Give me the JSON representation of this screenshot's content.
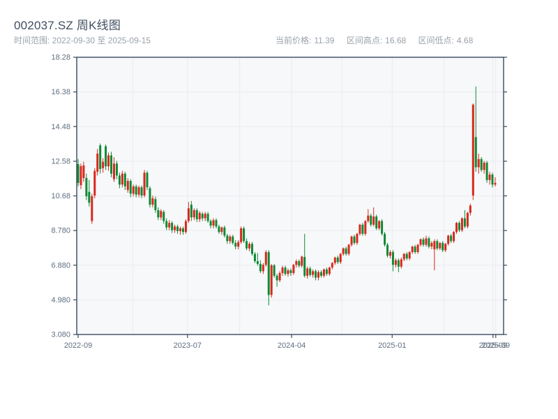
{
  "header": {
    "title": "002037.SZ 周K线图",
    "date_range": "时间范围: 2022-09-30 至 2025-09-15",
    "stats": [
      {
        "label": "当前价格:",
        "value": "11.39"
      },
      {
        "label": "区间高点:",
        "value": "16.68"
      },
      {
        "label": "区间低点:",
        "value": "4.68"
      }
    ]
  },
  "chart_data": {
    "type": "candlestick",
    "title": "002037.SZ 周K线图",
    "interval": "weekly",
    "ylim": [
      3.08,
      18.28
    ],
    "grid": true,
    "up_color_meaning": "red = up week, green = down week",
    "y_ticks": [
      {
        "value": 18.28,
        "label": "18.28"
      },
      {
        "value": 16.38,
        "label": "16.38"
      },
      {
        "value": 14.48,
        "label": "14.48"
      },
      {
        "value": 12.58,
        "label": "12.58"
      },
      {
        "value": 10.68,
        "label": "10.68"
      },
      {
        "value": 8.78,
        "label": "8.780"
      },
      {
        "value": 6.88,
        "label": "6.880"
      },
      {
        "value": 4.98,
        "label": "4.980"
      },
      {
        "value": 3.08,
        "label": "3.080"
      }
    ],
    "x_ticks": [
      {
        "pos": 0,
        "label": "2022-09"
      },
      {
        "pos": 39.6,
        "label": "2023-07"
      },
      {
        "pos": 77.3,
        "label": "2024-04"
      },
      {
        "pos": 113.7,
        "label": "2025-01"
      },
      {
        "pos": 150.2,
        "label": "2025-09"
      },
      {
        "pos": 151.2,
        "label": "2025-09"
      }
    ],
    "x_grid_minor": [
      19.8,
      58.5,
      95.5,
      132.5
    ],
    "colors": {
      "up": "#d8281c",
      "down": "#0e8a34",
      "plot_bg": "#f7f8fa",
      "grid": "#e9ebee",
      "spine": "#3a4a5c",
      "tick_label": "#5f6e80"
    },
    "candles": [
      [
        12.42,
        12.7,
        11.2,
        11.39
      ],
      [
        11.27,
        12.45,
        11.05,
        12.31
      ],
      [
        11.66,
        12.55,
        11.45,
        12.35
      ],
      [
        11.66,
        11.9,
        10.45,
        10.66
      ],
      [
        10.9,
        11.55,
        10.1,
        10.3
      ],
      [
        9.3,
        10.8,
        9.15,
        10.66
      ],
      [
        10.7,
        12.2,
        10.55,
        12.05
      ],
      [
        12.0,
        13.25,
        11.8,
        13.0
      ],
      [
        13.45,
        13.55,
        11.9,
        12.15
      ],
      [
        12.2,
        12.75,
        11.95,
        12.55
      ],
      [
        13.4,
        13.5,
        12.1,
        12.3
      ],
      [
        12.3,
        13.05,
        12.05,
        12.9
      ],
      [
        12.9,
        13.1,
        11.7,
        11.9
      ],
      [
        11.6,
        12.8,
        11.45,
        12.45
      ],
      [
        12.45,
        12.6,
        11.6,
        11.8
      ],
      [
        11.8,
        11.95,
        11.1,
        11.3
      ],
      [
        11.3,
        12.05,
        11.15,
        11.9
      ],
      [
        11.9,
        12.0,
        11.0,
        11.2
      ],
      [
        11.0,
        11.65,
        10.85,
        11.5
      ],
      [
        11.5,
        11.6,
        10.6,
        10.8
      ],
      [
        10.8,
        11.3,
        10.65,
        11.2
      ],
      [
        11.2,
        11.3,
        10.6,
        10.75
      ],
      [
        10.75,
        11.25,
        10.6,
        11.15
      ],
      [
        11.15,
        11.25,
        10.55,
        10.7
      ],
      [
        10.7,
        12.1,
        10.6,
        11.95
      ],
      [
        11.95,
        12.05,
        11.0,
        11.15
      ],
      [
        11.1,
        11.2,
        10.05,
        10.2
      ],
      [
        10.2,
        10.7,
        10.05,
        10.55
      ],
      [
        10.5,
        10.65,
        9.75,
        9.9
      ],
      [
        9.9,
        10.05,
        9.35,
        9.5
      ],
      [
        9.5,
        9.95,
        9.35,
        9.85
      ],
      [
        9.8,
        9.9,
        9.15,
        9.3
      ],
      [
        9.3,
        9.45,
        8.8,
        8.95
      ],
      [
        8.95,
        9.35,
        8.8,
        9.2
      ],
      [
        9.2,
        9.3,
        8.65,
        8.8
      ],
      [
        8.8,
        9.1,
        8.65,
        9.0
      ],
      [
        9.0,
        9.1,
        8.6,
        8.75
      ],
      [
        8.75,
        9.0,
        8.55,
        8.9
      ],
      [
        8.9,
        9.0,
        8.55,
        8.7
      ],
      [
        8.7,
        9.4,
        8.6,
        9.3
      ],
      [
        9.3,
        10.35,
        9.2,
        10.0
      ],
      [
        10.2,
        10.4,
        9.3,
        9.5
      ],
      [
        9.5,
        10.0,
        9.35,
        9.9
      ],
      [
        9.9,
        10.0,
        9.25,
        9.4
      ],
      [
        9.4,
        9.85,
        9.25,
        9.75
      ],
      [
        9.7,
        9.8,
        9.3,
        9.45
      ],
      [
        9.45,
        9.8,
        9.3,
        9.7
      ],
      [
        9.7,
        9.8,
        9.2,
        9.3
      ],
      [
        9.3,
        9.4,
        8.9,
        9.05
      ],
      [
        9.05,
        9.45,
        8.9,
        9.35
      ],
      [
        9.35,
        9.45,
        8.9,
        9.0
      ],
      [
        9.0,
        9.1,
        8.6,
        8.7
      ],
      [
        8.7,
        9.0,
        8.55,
        8.95
      ],
      [
        8.95,
        9.05,
        8.4,
        8.5
      ],
      [
        8.5,
        8.6,
        8.05,
        8.2
      ],
      [
        8.2,
        8.55,
        8.05,
        8.45
      ],
      [
        8.45,
        8.55,
        8.0,
        8.1
      ],
      [
        8.1,
        8.25,
        7.75,
        7.9
      ],
      [
        7.9,
        8.25,
        7.75,
        8.15
      ],
      [
        8.15,
        9.0,
        8.05,
        8.9
      ],
      [
        8.9,
        9.0,
        8.1,
        8.2
      ],
      [
        8.2,
        8.35,
        7.7,
        7.8
      ],
      [
        7.8,
        8.15,
        7.65,
        8.05
      ],
      [
        8.05,
        8.15,
        7.4,
        7.5
      ],
      [
        7.5,
        7.6,
        7.0,
        7.1
      ],
      [
        7.1,
        7.55,
        6.85,
        6.95
      ],
      [
        6.95,
        7.15,
        6.45,
        6.55
      ],
      [
        6.55,
        7.0,
        6.4,
        6.9
      ],
      [
        6.9,
        7.7,
        6.8,
        7.6
      ],
      [
        7.6,
        7.7,
        4.68,
        5.25
      ],
      [
        5.25,
        6.95,
        5.1,
        6.87
      ],
      [
        6.87,
        6.95,
        6.2,
        6.3
      ],
      [
        6.3,
        6.4,
        5.7,
        6.05
      ],
      [
        6.05,
        6.55,
        5.95,
        6.45
      ],
      [
        6.45,
        6.85,
        6.3,
        6.75
      ],
      [
        6.75,
        6.85,
        6.3,
        6.4
      ],
      [
        6.4,
        6.7,
        6.25,
        6.6
      ],
      [
        6.6,
        6.7,
        6.3,
        6.45
      ],
      [
        6.45,
        6.95,
        6.35,
        6.9
      ],
      [
        6.9,
        7.2,
        6.75,
        7.1
      ],
      [
        7.1,
        7.2,
        6.75,
        6.85
      ],
      [
        6.85,
        7.4,
        6.75,
        7.35
      ],
      [
        7.33,
        8.6,
        6.2,
        6.3
      ],
      [
        6.3,
        6.8,
        6.15,
        6.7
      ],
      [
        6.7,
        6.8,
        6.25,
        6.35
      ],
      [
        6.35,
        6.65,
        6.2,
        6.55
      ],
      [
        6.55,
        6.65,
        6.05,
        6.2
      ],
      [
        6.2,
        6.6,
        6.05,
        6.5
      ],
      [
        6.5,
        6.6,
        6.2,
        6.3
      ],
      [
        6.3,
        6.7,
        6.2,
        6.65
      ],
      [
        6.65,
        6.75,
        6.3,
        6.4
      ],
      [
        6.4,
        6.8,
        6.3,
        6.75
      ],
      [
        6.75,
        7.05,
        6.65,
        7.0
      ],
      [
        7.0,
        7.35,
        6.9,
        7.3
      ],
      [
        7.3,
        7.4,
        6.95,
        7.05
      ],
      [
        7.05,
        7.55,
        6.95,
        7.5
      ],
      [
        7.5,
        7.85,
        7.4,
        7.8
      ],
      [
        7.8,
        7.9,
        7.4,
        7.5
      ],
      [
        7.5,
        8.05,
        7.4,
        8.0
      ],
      [
        8.0,
        8.5,
        7.9,
        8.45
      ],
      [
        8.45,
        8.55,
        8.0,
        8.1
      ],
      [
        8.1,
        8.65,
        8.0,
        8.6
      ],
      [
        8.6,
        9.15,
        8.5,
        9.1
      ],
      [
        9.1,
        9.2,
        8.5,
        8.6
      ],
      [
        8.6,
        9.35,
        8.5,
        9.3
      ],
      [
        9.3,
        9.95,
        9.2,
        9.6
      ],
      [
        9.6,
        9.7,
        9.0,
        9.1
      ],
      [
        9.1,
        10.05,
        9.0,
        9.55
      ],
      [
        9.55,
        9.65,
        8.8,
        8.9
      ],
      [
        8.9,
        9.35,
        8.8,
        9.3
      ],
      [
        9.3,
        9.4,
        8.5,
        8.6
      ],
      [
        8.6,
        8.7,
        7.9,
        8.0
      ],
      [
        8.0,
        8.1,
        7.3,
        7.4
      ],
      [
        7.4,
        7.7,
        7.25,
        7.6
      ],
      [
        7.6,
        7.7,
        6.55,
        6.9
      ],
      [
        6.9,
        7.25,
        6.75,
        7.15
      ],
      [
        7.15,
        7.25,
        6.5,
        6.8
      ],
      [
        6.8,
        7.3,
        6.7,
        7.2
      ],
      [
        7.2,
        7.55,
        7.1,
        7.5
      ],
      [
        7.5,
        7.6,
        7.15,
        7.25
      ],
      [
        7.25,
        7.65,
        7.15,
        7.6
      ],
      [
        7.6,
        7.95,
        7.5,
        7.9
      ],
      [
        7.9,
        8.0,
        7.5,
        7.6
      ],
      [
        7.6,
        8.05,
        7.5,
        8.0
      ],
      [
        8.0,
        8.35,
        7.9,
        8.3
      ],
      [
        8.3,
        8.4,
        7.9,
        8.0
      ],
      [
        8.0,
        8.5,
        7.9,
        8.35
      ],
      [
        8.35,
        8.45,
        7.8,
        7.9
      ],
      [
        7.9,
        8.2,
        7.75,
        8.1
      ],
      [
        7.75,
        8.3,
        6.6,
        8.2
      ],
      [
        8.2,
        8.3,
        7.7,
        7.8
      ],
      [
        7.8,
        8.15,
        7.7,
        8.1
      ],
      [
        8.1,
        8.2,
        7.6,
        7.7
      ],
      [
        7.7,
        8.1,
        7.6,
        8.05
      ],
      [
        8.05,
        8.55,
        7.95,
        8.5
      ],
      [
        8.5,
        8.6,
        8.1,
        8.2
      ],
      [
        8.2,
        8.75,
        8.1,
        8.7
      ],
      [
        8.7,
        9.25,
        8.6,
        9.2
      ],
      [
        9.2,
        9.3,
        8.7,
        8.8
      ],
      [
        8.8,
        9.5,
        8.7,
        9.45
      ],
      [
        9.45,
        9.9,
        8.9,
        9.0
      ],
      [
        9.0,
        9.8,
        8.9,
        9.75
      ],
      [
        9.75,
        10.25,
        9.6,
        10.15
      ],
      [
        10.7,
        15.75,
        10.45,
        15.68
      ],
      [
        13.9,
        16.68,
        12.0,
        12.25
      ],
      [
        12.25,
        13.0,
        11.9,
        12.7
      ],
      [
        12.7,
        12.8,
        12.0,
        12.1
      ],
      [
        12.1,
        12.6,
        11.9,
        12.5
      ],
      [
        12.5,
        12.6,
        11.4,
        11.55
      ],
      [
        11.55,
        12.0,
        11.3,
        11.85
      ],
      [
        11.85,
        11.95,
        11.15,
        11.3
      ],
      [
        11.3,
        11.7,
        11.2,
        11.39
      ]
    ]
  }
}
